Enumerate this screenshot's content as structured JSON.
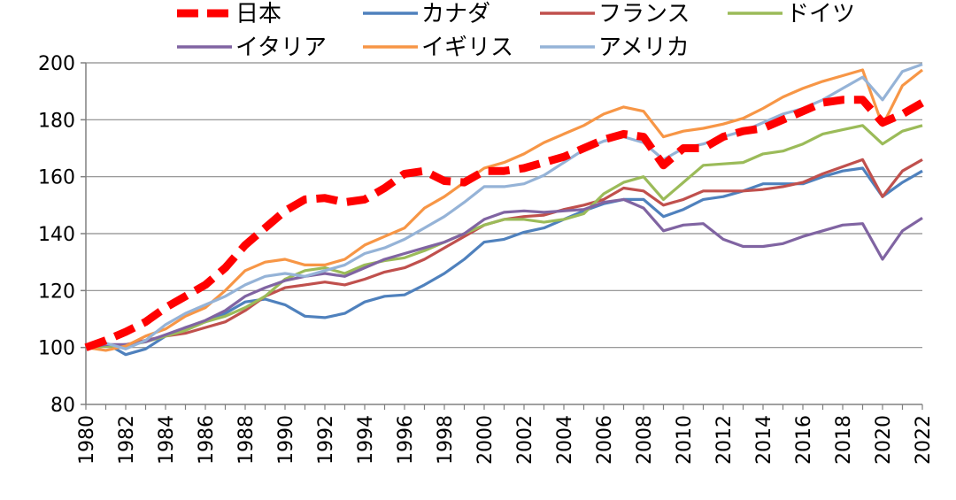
{
  "chart_data": {
    "type": "line",
    "title": "",
    "xlabel": "",
    "ylabel": "",
    "ylim": [
      80,
      200
    ],
    "yticks": [
      80,
      100,
      120,
      140,
      160,
      180,
      200
    ],
    "x": [
      1980,
      1981,
      1982,
      1983,
      1984,
      1985,
      1986,
      1987,
      1988,
      1989,
      1990,
      1991,
      1992,
      1993,
      1994,
      1995,
      1996,
      1997,
      1998,
      1999,
      2000,
      2001,
      2002,
      2003,
      2004,
      2005,
      2006,
      2007,
      2008,
      2009,
      2010,
      2011,
      2012,
      2013,
      2014,
      2015,
      2016,
      2017,
      2018,
      2019,
      2020,
      2021,
      2022
    ],
    "xtick_labels": [
      "1980",
      "1982",
      "1984",
      "1986",
      "1988",
      "1990",
      "1992",
      "1994",
      "1996",
      "1998",
      "2000",
      "2002",
      "2004",
      "2006",
      "2008",
      "2010",
      "2012",
      "2014",
      "2016",
      "2018",
      "2020",
      "2022"
    ],
    "legend_position": "top",
    "series": [
      {
        "name": "日本",
        "color": "#ff0000",
        "dashed": true,
        "values": [
          100,
          102.5,
          105.5,
          109,
          114,
          118,
          122,
          128,
          136,
          142,
          148,
          152,
          152.5,
          151,
          152,
          156,
          161,
          162,
          158.5,
          158,
          162,
          162,
          163,
          165,
          167,
          170,
          173,
          175,
          174,
          164,
          170,
          170,
          174,
          176,
          177,
          180,
          183,
          186,
          187,
          187,
          179,
          182,
          186
        ]
      },
      {
        "name": "カナダ",
        "color": "#4f81bd",
        "dashed": false,
        "values": [
          100,
          101.5,
          97.5,
          99.5,
          104,
          107,
          109,
          112,
          116,
          117,
          115,
          111,
          110.5,
          112,
          116,
          118,
          118.5,
          122,
          126,
          131,
          137,
          138,
          140.5,
          142,
          145,
          148,
          150.5,
          152,
          152,
          146,
          148.5,
          152,
          153,
          155,
          157.5,
          157.5,
          157.5,
          160,
          162,
          163,
          153,
          158,
          162
        ]
      },
      {
        "name": "フランス",
        "color": "#c0504d",
        "dashed": false,
        "values": [
          100,
          100.5,
          101,
          102.5,
          104,
          105,
          107,
          109,
          113,
          118,
          121,
          122,
          123,
          122,
          124,
          126.5,
          128,
          131,
          135,
          139,
          143,
          145,
          146,
          146.5,
          148.5,
          150,
          152,
          156,
          155,
          150,
          152,
          155,
          155,
          155,
          155.5,
          156.5,
          158,
          161,
          163.5,
          166,
          153,
          162,
          166
        ]
      },
      {
        "name": "ドイツ",
        "color": "#9bbb59",
        "dashed": false,
        "values": [
          100,
          100.5,
          100.5,
          102,
          104,
          106,
          109,
          111,
          114,
          118,
          124,
          127,
          128,
          126,
          129,
          130.5,
          131.5,
          134,
          137,
          140,
          143,
          145,
          145,
          144,
          145,
          147,
          154,
          158,
          160,
          152,
          158,
          164,
          164.5,
          165,
          168,
          169,
          171.5,
          175,
          176.5,
          178,
          171.5,
          176,
          178
        ]
      },
      {
        "name": "イタリア",
        "color": "#8064a2",
        "dashed": false,
        "values": [
          100,
          101,
          101,
          102,
          104.5,
          107,
          109.5,
          113,
          118,
          121,
          123.5,
          125,
          126,
          125,
          128,
          131,
          133,
          135,
          137,
          140,
          145,
          147.5,
          148,
          147.5,
          148,
          148.5,
          151,
          152,
          149,
          141,
          143,
          143.5,
          138,
          135.5,
          135.5,
          136.5,
          139,
          141,
          143,
          143.5,
          131,
          141,
          145.5
        ]
      },
      {
        "name": "イギリス",
        "color": "#f79646",
        "dashed": false,
        "values": [
          100,
          99,
          100.5,
          104,
          106.5,
          111,
          114,
          120,
          127,
          130,
          131,
          129,
          129,
          131,
          136,
          139,
          142,
          149,
          153,
          158,
          163,
          165,
          168,
          172,
          175,
          178,
          182,
          184.5,
          183,
          174,
          176,
          177,
          178.5,
          180.5,
          184,
          188,
          191,
          193.5,
          195.5,
          197.5,
          178,
          192,
          197.5
        ]
      },
      {
        "name": "アメリカ",
        "color": "#95b3d7",
        "dashed": false,
        "values": [
          100,
          101.5,
          99.5,
          102.5,
          108,
          112,
          115,
          118,
          122,
          125,
          126,
          125,
          127,
          129,
          133,
          135,
          138,
          142,
          146,
          151,
          156.5,
          156.5,
          157.5,
          160.5,
          165,
          169.5,
          172.5,
          174,
          172,
          166,
          170,
          171.5,
          174,
          176,
          179,
          182,
          184,
          187,
          191,
          195,
          187,
          197,
          199.5
        ]
      }
    ]
  }
}
